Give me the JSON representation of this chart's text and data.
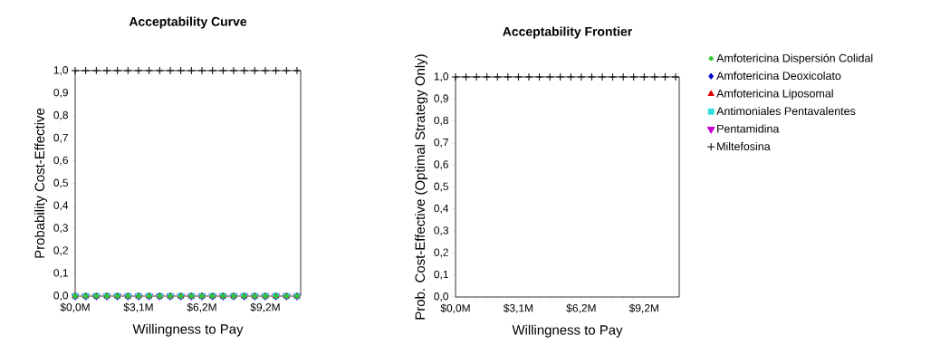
{
  "chart_data": [
    {
      "type": "scatter",
      "title": "Acceptability Curve",
      "xlabel": "Willingness to Pay",
      "ylabel": "Probability Cost-Effective",
      "x": [
        0,
        0.513,
        1.026,
        1.539,
        2.052,
        2.565,
        3.078,
        3.591,
        4.104,
        4.617,
        5.13,
        5.643,
        6.156,
        6.669,
        7.182,
        7.695,
        8.208,
        8.721,
        9.234,
        9.747,
        10.26,
        10.773
      ],
      "xlim": [
        0,
        10.95
      ],
      "ylim": [
        0,
        1
      ],
      "xticks": [
        {
          "value": 0,
          "label": "$0,0M"
        },
        {
          "value": 3.078,
          "label": "$3,1M"
        },
        {
          "value": 6.156,
          "label": "$6,2M"
        },
        {
          "value": 9.234,
          "label": "$9,2M"
        }
      ],
      "yticks": [
        {
          "value": 0,
          "label": "0,0"
        },
        {
          "value": 0.1,
          "label": "0,1"
        },
        {
          "value": 0.2,
          "label": "0,2"
        },
        {
          "value": 0.3,
          "label": "0,3"
        },
        {
          "value": 0.4,
          "label": "0,4"
        },
        {
          "value": 0.5,
          "label": "0,5"
        },
        {
          "value": 0.6,
          "label": "0,6"
        },
        {
          "value": 0.7,
          "label": "0,7"
        },
        {
          "value": 0.8,
          "label": "0,8"
        },
        {
          "value": 0.9,
          "label": "0,9"
        },
        {
          "value": 1,
          "label": "1,0"
        }
      ],
      "grid": false,
      "legend": "right",
      "series": [
        {
          "name": "Amfotericina Dispersión Colidal",
          "color": "#33cc33",
          "marker": "circle",
          "values": [
            0,
            0,
            0,
            0,
            0,
            0,
            0,
            0,
            0,
            0,
            0,
            0,
            0,
            0,
            0,
            0,
            0,
            0,
            0,
            0,
            0,
            0
          ]
        },
        {
          "name": "Amfotericina Deoxicolato",
          "color": "#0000cc",
          "marker": "diamond",
          "values": [
            0,
            0,
            0,
            0,
            0,
            0,
            0,
            0,
            0,
            0,
            0,
            0,
            0,
            0,
            0,
            0,
            0,
            0,
            0,
            0,
            0,
            0
          ]
        },
        {
          "name": "Amfotericina Liposomal",
          "color": "#e00000",
          "marker": "triangle",
          "values": [
            0,
            0,
            0,
            0,
            0,
            0,
            0,
            0,
            0,
            0,
            0,
            0,
            0,
            0,
            0,
            0,
            0,
            0,
            0,
            0,
            0,
            0
          ]
        },
        {
          "name": "Antimoniales Pentavalentes",
          "color": "#33dddd",
          "marker": "square",
          "values": [
            0,
            0,
            0,
            0,
            0,
            0,
            0,
            0,
            0,
            0,
            0,
            0,
            0,
            0,
            0,
            0,
            0,
            0,
            0,
            0,
            0,
            0
          ]
        },
        {
          "name": "Pentamidina",
          "color": "#cc00cc",
          "marker": "triangle-down",
          "values": [
            0,
            0,
            0,
            0,
            0,
            0,
            0,
            0,
            0,
            0,
            0,
            0,
            0,
            0,
            0,
            0,
            0,
            0,
            0,
            0,
            0,
            0
          ]
        },
        {
          "name": "Miltefosina",
          "color": "#000000",
          "marker": "cross",
          "values": [
            1,
            1,
            1,
            1,
            1,
            1,
            1,
            1,
            1,
            1,
            1,
            1,
            1,
            1,
            1,
            1,
            1,
            1,
            1,
            1,
            1,
            1
          ]
        }
      ]
    },
    {
      "type": "scatter",
      "title": "Acceptability Frontier",
      "xlabel": "Willingness to Pay",
      "ylabel": "Prob. Cost-Effective (Optimal Strategy Only)",
      "x": [
        0,
        0.513,
        1.026,
        1.539,
        2.052,
        2.565,
        3.078,
        3.591,
        4.104,
        4.617,
        5.13,
        5.643,
        6.156,
        6.669,
        7.182,
        7.695,
        8.208,
        8.721,
        9.234,
        9.747,
        10.26,
        10.773
      ],
      "xlim": [
        0,
        10.95
      ],
      "ylim": [
        0,
        1
      ],
      "xticks": [
        {
          "value": 0,
          "label": "$0,0M"
        },
        {
          "value": 3.078,
          "label": "$3,1M"
        },
        {
          "value": 6.156,
          "label": "$6,2M"
        },
        {
          "value": 9.234,
          "label": "$9,2M"
        }
      ],
      "yticks": [
        {
          "value": 0,
          "label": "0,0"
        },
        {
          "value": 0.1,
          "label": "0,1"
        },
        {
          "value": 0.2,
          "label": "0,2"
        },
        {
          "value": 0.3,
          "label": "0,3"
        },
        {
          "value": 0.4,
          "label": "0,4"
        },
        {
          "value": 0.5,
          "label": "0,5"
        },
        {
          "value": 0.6,
          "label": "0,6"
        },
        {
          "value": 0.7,
          "label": "0,7"
        },
        {
          "value": 0.8,
          "label": "0,8"
        },
        {
          "value": 0.9,
          "label": "0,9"
        },
        {
          "value": 1,
          "label": "1,0"
        }
      ],
      "grid": false,
      "series": [
        {
          "color": "#000000",
          "marker": "cross",
          "values": [
            1,
            1,
            1,
            1,
            1,
            1,
            1,
            1,
            1,
            1,
            1,
            1,
            1,
            1,
            1,
            1,
            1,
            1,
            1,
            1,
            1,
            1
          ]
        }
      ]
    }
  ]
}
